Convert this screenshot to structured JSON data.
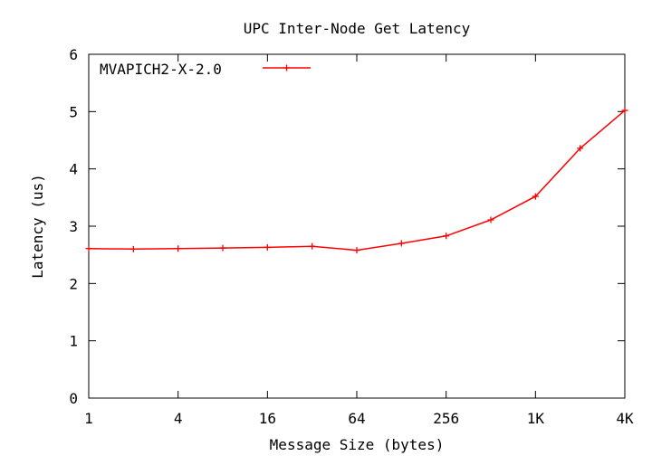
{
  "chart_data": {
    "type": "line",
    "title": "UPC Inter-Node Get Latency",
    "xlabel": "Message Size (bytes)",
    "ylabel": "Latency (us)",
    "x_scale": "log2",
    "xlim": [
      1,
      4096
    ],
    "ylim": [
      0,
      6
    ],
    "x_ticks": [
      {
        "value": 1,
        "label": "1"
      },
      {
        "value": 4,
        "label": "4"
      },
      {
        "value": 16,
        "label": "16"
      },
      {
        "value": 64,
        "label": "64"
      },
      {
        "value": 256,
        "label": "256"
      },
      {
        "value": 1024,
        "label": "1K"
      },
      {
        "value": 4096,
        "label": "4K"
      }
    ],
    "y_ticks": [
      {
        "value": 0,
        "label": "0"
      },
      {
        "value": 1,
        "label": "1"
      },
      {
        "value": 2,
        "label": "2"
      },
      {
        "value": 3,
        "label": "3"
      },
      {
        "value": 4,
        "label": "4"
      },
      {
        "value": 5,
        "label": "5"
      },
      {
        "value": 6,
        "label": "6"
      }
    ],
    "grid": false,
    "legend_position": "top-left",
    "x": [
      1,
      2,
      4,
      8,
      16,
      32,
      64,
      128,
      256,
      512,
      1024,
      2048,
      4096
    ],
    "series": [
      {
        "name": "MVAPICH2-X-2.0",
        "color": "#ff0000",
        "marker": "plus",
        "values": [
          2.61,
          2.6,
          2.61,
          2.62,
          2.63,
          2.65,
          2.58,
          2.7,
          2.83,
          3.11,
          3.52,
          4.36,
          5.02
        ]
      }
    ]
  }
}
